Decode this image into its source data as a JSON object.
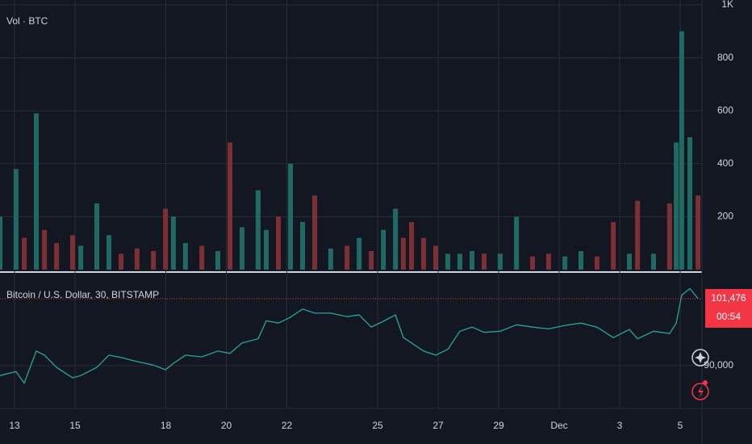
{
  "chart_data": [
    {
      "type": "bar",
      "title": "Vol · BTC",
      "x": [
        12.52,
        13.05,
        13.32,
        13.72,
        13.99,
        14.39,
        14.92,
        15.19,
        15.72,
        16.12,
        16.52,
        17.05,
        17.59,
        17.99,
        18.25,
        18.65,
        19.19,
        19.72,
        20.12,
        20.52,
        21.05,
        21.32,
        21.72,
        22.12,
        22.52,
        22.92,
        23.45,
        23.99,
        24.39,
        24.79,
        25.19,
        25.59,
        25.85,
        26.12,
        26.52,
        26.92,
        27.32,
        27.72,
        28.12,
        28.52,
        29.05,
        29.59,
        30.12,
        30.65,
        31.19,
        31.72,
        32.25,
        32.79,
        33.32,
        33.59,
        34.12,
        34.65,
        34.87,
        35.05,
        35.32,
        35.59
      ],
      "values": [
        200,
        380,
        120,
        590,
        150,
        100,
        130,
        90,
        250,
        130,
        60,
        80,
        70,
        230,
        200,
        100,
        90,
        70,
        480,
        160,
        300,
        150,
        200,
        400,
        180,
        280,
        80,
        90,
        120,
        70,
        150,
        230,
        120,
        180,
        120,
        90,
        60,
        60,
        70,
        60,
        60,
        200,
        50,
        60,
        50,
        70,
        50,
        180,
        60,
        260,
        60,
        250,
        480,
        900,
        500,
        280
      ],
      "up_color": "#1f6b64",
      "down_color": "#7d2f36",
      "xlim": [
        12.52,
        35.72
      ],
      "ylim": [
        0,
        1000
      ],
      "yticks": [
        200,
        400,
        600,
        800,
        {
          "value": 1000,
          "label": "1K"
        }
      ],
      "grid": true
    },
    {
      "type": "line",
      "title": "Bitcoin / U.S. Dollar, 30, BITSTAMP",
      "x": [
        12.52,
        13.05,
        13.32,
        13.72,
        13.99,
        14.39,
        14.92,
        15.19,
        15.72,
        16.12,
        16.52,
        17.05,
        17.59,
        17.99,
        18.25,
        18.65,
        19.19,
        19.72,
        20.12,
        20.52,
        21.05,
        21.32,
        21.72,
        22.12,
        22.52,
        22.92,
        23.45,
        23.99,
        24.39,
        24.79,
        25.19,
        25.59,
        25.85,
        26.12,
        26.52,
        26.92,
        27.32,
        27.72,
        28.12,
        28.52,
        29.05,
        29.59,
        30.12,
        30.65,
        31.19,
        31.72,
        32.25,
        32.79,
        33.32,
        33.59,
        34.12,
        34.65,
        34.87,
        35.05,
        35.32,
        35.59
      ],
      "values": [
        88300,
        89000,
        87000,
        92500,
        91800,
        89700,
        87900,
        88300,
        89700,
        91800,
        91400,
        90700,
        90100,
        89300,
        90400,
        91800,
        91500,
        92500,
        92100,
        93900,
        94600,
        97700,
        97300,
        98300,
        99700,
        99000,
        99000,
        98400,
        98700,
        96600,
        97600,
        98700,
        94800,
        93900,
        92500,
        91800,
        92800,
        95900,
        96600,
        95700,
        95900,
        97000,
        96600,
        96300,
        96900,
        97300,
        96600,
        94800,
        96200,
        94600,
        95900,
        95500,
        97300,
        102100,
        103200,
        101500
      ],
      "color": "#26a69a",
      "xlim": [
        12.52,
        35.72
      ],
      "ylim": [
        82800,
        105900
      ],
      "yticks": [
        {
          "value": 90000,
          "label": "90,000"
        }
      ],
      "xticks": [
        13,
        15,
        18,
        20,
        22,
        25,
        27,
        29,
        {
          "value": 31,
          "label": "Dec"
        },
        {
          "value": 33,
          "label": "3"
        },
        {
          "value": 35,
          "label": "5"
        }
      ],
      "last_price": {
        "value": 101476,
        "label": "101,476"
      },
      "last_color": "#f23645",
      "countdown": "00:54",
      "grid": true
    }
  ]
}
